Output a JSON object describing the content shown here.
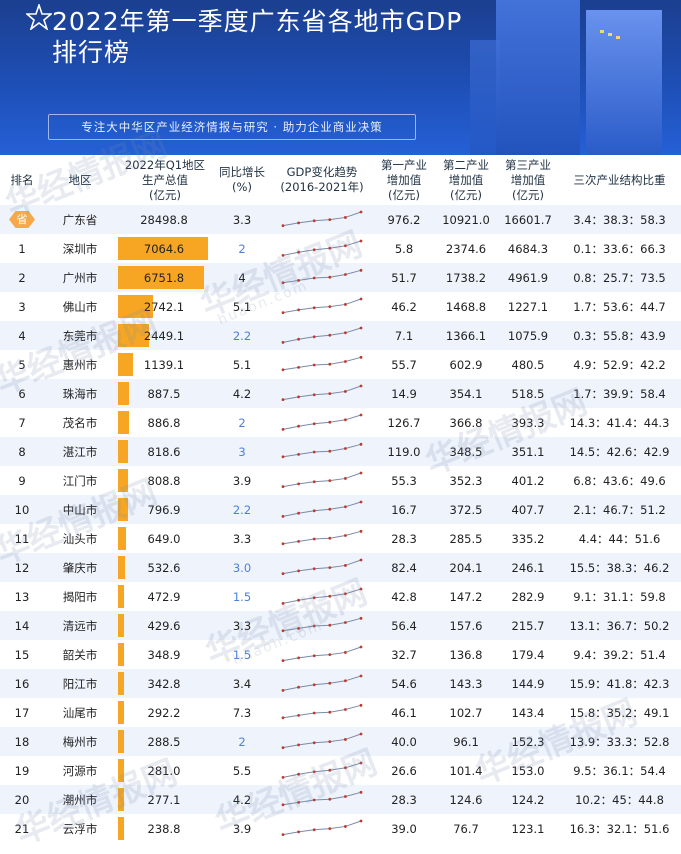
{
  "header": {
    "title_line1": "2022年第一季度广东省各地市GDP",
    "title_line2": "排行榜",
    "subtitle": "专注大中华区产业经济情报与研究 · 助力企业商业决策"
  },
  "watermark": {
    "brand": "华经情报网",
    "url": "huaon.com"
  },
  "columns": {
    "rank": "排名",
    "region": "地区",
    "gdp": [
      "2022年Q1地区",
      "生产总值",
      "(亿元)"
    ],
    "growth": [
      "同比增长",
      "(%)"
    ],
    "trend": [
      "GDP变化趋势",
      "(2016-2021年)"
    ],
    "primary": [
      "第一产业",
      "增加值",
      "(亿元)"
    ],
    "secondary": [
      "第二产业",
      "增加值",
      "(亿元)"
    ],
    "tertiary": [
      "第三产业",
      "增加值",
      "(亿元)"
    ],
    "structure": "三次产业结构比重"
  },
  "colors": {
    "bar": "#f6a623",
    "badge": "#f5a94a",
    "growth_blue": "#4f7fd9",
    "spark_line": "#7a8aa8",
    "spark_dot": "#c0392b"
  },
  "gdp_bar_max": 7064.6,
  "rows": [
    {
      "rank": "省",
      "region": "广东省",
      "gdp": "28498.8",
      "gdp_value": null,
      "growth": "3.3",
      "growth_blue": false,
      "primary": "976.2",
      "secondary": "10921.0",
      "tertiary": "16601.7",
      "structure": "3.4：38.3：58.3"
    },
    {
      "rank": "1",
      "region": "深圳市",
      "gdp": "7064.6",
      "gdp_value": 7064.6,
      "growth": "2",
      "growth_blue": true,
      "primary": "5.8",
      "secondary": "2374.6",
      "tertiary": "4684.3",
      "structure": "0.1：33.6：66.3"
    },
    {
      "rank": "2",
      "region": "广州市",
      "gdp": "6751.8",
      "gdp_value": 6751.8,
      "growth": "4",
      "growth_blue": false,
      "primary": "51.7",
      "secondary": "1738.2",
      "tertiary": "4961.9",
      "structure": "0.8：25.7：73.5"
    },
    {
      "rank": "3",
      "region": "佛山市",
      "gdp": "2742.1",
      "gdp_value": 2742.1,
      "growth": "5.1",
      "growth_blue": false,
      "primary": "46.2",
      "secondary": "1468.8",
      "tertiary": "1227.1",
      "structure": "1.7：53.6：44.7"
    },
    {
      "rank": "4",
      "region": "东莞市",
      "gdp": "2449.1",
      "gdp_value": 2449.1,
      "growth": "2.2",
      "growth_blue": true,
      "primary": "7.1",
      "secondary": "1366.1",
      "tertiary": "1075.9",
      "structure": "0.3：55.8：43.9"
    },
    {
      "rank": "5",
      "region": "惠州市",
      "gdp": "1139.1",
      "gdp_value": 1139.1,
      "growth": "5.1",
      "growth_blue": false,
      "primary": "55.7",
      "secondary": "602.9",
      "tertiary": "480.5",
      "structure": "4.9：52.9：42.2"
    },
    {
      "rank": "6",
      "region": "珠海市",
      "gdp": "887.5",
      "gdp_value": 887.5,
      "growth": "4.2",
      "growth_blue": false,
      "primary": "14.9",
      "secondary": "354.1",
      "tertiary": "518.5",
      "structure": "1.7：39.9：58.4"
    },
    {
      "rank": "7",
      "region": "茂名市",
      "gdp": "886.8",
      "gdp_value": 886.8,
      "growth": "2",
      "growth_blue": true,
      "primary": "126.7",
      "secondary": "366.8",
      "tertiary": "393.3",
      "structure": "14.3：41.4：44.3"
    },
    {
      "rank": "8",
      "region": "湛江市",
      "gdp": "818.6",
      "gdp_value": 818.6,
      "growth": "3",
      "growth_blue": true,
      "primary": "119.0",
      "secondary": "348.5",
      "tertiary": "351.1",
      "structure": "14.5：42.6：42.9"
    },
    {
      "rank": "9",
      "region": "江门市",
      "gdp": "808.8",
      "gdp_value": 808.8,
      "growth": "3.9",
      "growth_blue": false,
      "primary": "55.3",
      "secondary": "352.3",
      "tertiary": "401.2",
      "structure": "6.8：43.6：49.6"
    },
    {
      "rank": "10",
      "region": "中山市",
      "gdp": "796.9",
      "gdp_value": 796.9,
      "growth": "2.2",
      "growth_blue": true,
      "primary": "16.7",
      "secondary": "372.5",
      "tertiary": "407.7",
      "structure": "2.1：46.7：51.2"
    },
    {
      "rank": "11",
      "region": "汕头市",
      "gdp": "649.0",
      "gdp_value": 649.0,
      "growth": "3.3",
      "growth_blue": false,
      "primary": "28.3",
      "secondary": "285.5",
      "tertiary": "335.2",
      "structure": "4.4：44：51.6"
    },
    {
      "rank": "12",
      "region": "肇庆市",
      "gdp": "532.6",
      "gdp_value": 532.6,
      "growth": "3.0",
      "growth_blue": true,
      "primary": "82.4",
      "secondary": "204.1",
      "tertiary": "246.1",
      "structure": "15.5：38.3：46.2"
    },
    {
      "rank": "13",
      "region": "揭阳市",
      "gdp": "472.9",
      "gdp_value": 472.9,
      "growth": "1.5",
      "growth_blue": true,
      "primary": "42.8",
      "secondary": "147.2",
      "tertiary": "282.9",
      "structure": "9.1：31.1：59.8"
    },
    {
      "rank": "14",
      "region": "清远市",
      "gdp": "429.6",
      "gdp_value": 429.6,
      "growth": "3.3",
      "growth_blue": false,
      "primary": "56.4",
      "secondary": "157.6",
      "tertiary": "215.7",
      "structure": "13.1：36.7：50.2"
    },
    {
      "rank": "15",
      "region": "韶关市",
      "gdp": "348.9",
      "gdp_value": 348.9,
      "growth": "1.5",
      "growth_blue": true,
      "primary": "32.7",
      "secondary": "136.8",
      "tertiary": "179.4",
      "structure": "9.4：39.2：51.4"
    },
    {
      "rank": "16",
      "region": "阳江市",
      "gdp": "342.8",
      "gdp_value": 342.8,
      "growth": "3.4",
      "growth_blue": false,
      "primary": "54.6",
      "secondary": "143.3",
      "tertiary": "144.9",
      "structure": "15.9：41.8：42.3"
    },
    {
      "rank": "17",
      "region": "汕尾市",
      "gdp": "292.2",
      "gdp_value": 292.2,
      "growth": "7.3",
      "growth_blue": false,
      "primary": "46.1",
      "secondary": "102.7",
      "tertiary": "143.4",
      "structure": "15.8：35.2：49.1"
    },
    {
      "rank": "18",
      "region": "梅州市",
      "gdp": "288.5",
      "gdp_value": 288.5,
      "growth": "2",
      "growth_blue": true,
      "primary": "40.0",
      "secondary": "96.1",
      "tertiary": "152.3",
      "structure": "13.9：33.3：52.8"
    },
    {
      "rank": "19",
      "region": "河源市",
      "gdp": "281.0",
      "gdp_value": 281.0,
      "growth": "5.5",
      "growth_blue": false,
      "primary": "26.6",
      "secondary": "101.4",
      "tertiary": "153.0",
      "structure": "9.5：36.1：54.4"
    },
    {
      "rank": "20",
      "region": "潮州市",
      "gdp": "277.1",
      "gdp_value": 277.1,
      "growth": "4.2",
      "growth_blue": false,
      "primary": "28.3",
      "secondary": "124.6",
      "tertiary": "124.2",
      "structure": "10.2：45：44.8"
    },
    {
      "rank": "21",
      "region": "云浮市",
      "gdp": "238.8",
      "gdp_value": 238.8,
      "growth": "3.9",
      "growth_blue": false,
      "primary": "39.0",
      "secondary": "76.7",
      "tertiary": "123.1",
      "structure": "16.3：32.1：51.6"
    }
  ]
}
